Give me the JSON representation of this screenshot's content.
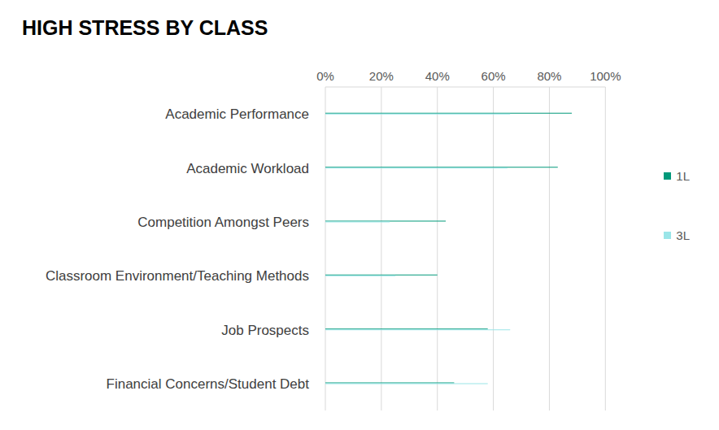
{
  "chart_data": {
    "type": "bar",
    "title": "HIGH STRESS BY CLASS",
    "orientation": "horizontal",
    "categories": [
      "Academic Performance",
      "Academic Workload",
      "Competition Amongst Peers",
      "Classroom Environment/Teaching Methods",
      "Job Prospects",
      "Financial Concerns/Student Debt"
    ],
    "series": [
      {
        "name": "1L",
        "color": "#00997A",
        "values": [
          88,
          83,
          43,
          40,
          58,
          46
        ]
      },
      {
        "name": "3L",
        "color": "#9AE5E8",
        "values": [
          66,
          65,
          23,
          25,
          66,
          58
        ]
      }
    ],
    "xlim": [
      0,
      100
    ],
    "xticks": [
      {
        "value": 0,
        "label": "0%"
      },
      {
        "value": 20,
        "label": "20%"
      },
      {
        "value": 40,
        "label": "40%"
      },
      {
        "value": 60,
        "label": "60%"
      },
      {
        "value": 80,
        "label": "80%"
      },
      {
        "value": 100,
        "label": "100%"
      }
    ],
    "grid": true,
    "legend": "right"
  }
}
